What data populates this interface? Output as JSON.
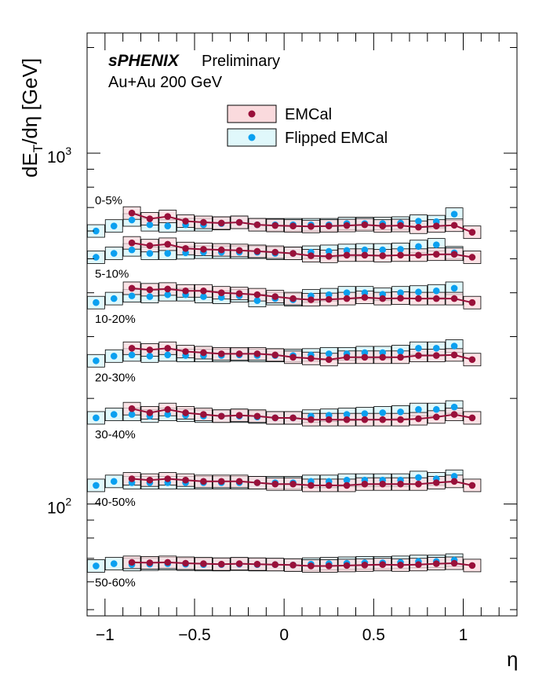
{
  "header": {
    "experiment": "sPHENIX",
    "status": "Preliminary",
    "collision": "Au+Au 200 GeV"
  },
  "chart_data": {
    "type": "scatter",
    "xlabel": "η",
    "ylabel": "dE_T/dη [GeV]",
    "y_scale": "log",
    "xlim": [
      -1.1,
      1.3
    ],
    "ylim": [
      48,
      2200
    ],
    "x_ticks": [
      {
        "value": -1,
        "label": "−1"
      },
      {
        "value": -0.5,
        "label": "−0.5"
      },
      {
        "value": 0,
        "label": "0"
      },
      {
        "value": 0.5,
        "label": "0.5"
      },
      {
        "value": 1,
        "label": "1"
      }
    ],
    "y_ticks": [
      {
        "value": 1000,
        "label": "10",
        "exp": "3"
      },
      {
        "value": 100,
        "label": "10",
        "exp": "2"
      }
    ],
    "legend": {
      "placement": "top-center",
      "entries": [
        {
          "label": "EMCal",
          "marker_color": "#99103a",
          "box_fill": "#fadadd"
        },
        {
          "label": "Flipped EMCal",
          "marker_color": "#0aa0f0",
          "box_fill": "#e0f8fb"
        }
      ]
    },
    "series_styles": {
      "emcal": {
        "marker": "#99103a",
        "box_fill": "#fadadd"
      },
      "flipped": {
        "marker": "#0aa0f0",
        "box_fill": "#e0f8fb"
      }
    },
    "groups": [
      {
        "label": "0-5%",
        "emcal": {
          "x": [
            -0.85,
            -0.75,
            -0.65,
            -0.55,
            -0.45,
            -0.35,
            -0.25,
            -0.15,
            -0.05,
            0.05,
            0.15,
            0.25,
            0.35,
            0.45,
            0.55,
            0.65,
            0.75,
            0.85,
            0.95,
            1.05
          ],
          "y": [
            675,
            650,
            660,
            640,
            635,
            632,
            635,
            625,
            622,
            620,
            618,
            620,
            622,
            625,
            620,
            622,
            615,
            620,
            623,
            595
          ]
        },
        "flipped": {
          "x": [
            -1.05,
            -0.95,
            -0.85,
            -0.75,
            -0.65,
            -0.55,
            -0.45,
            -0.35,
            -0.25,
            -0.15,
            -0.05,
            0.05,
            0.15,
            0.25,
            0.35,
            0.45,
            0.55,
            0.65,
            0.75,
            0.85,
            0.95
          ],
          "y": [
            600,
            620,
            645,
            625,
            620,
            625,
            625,
            630,
            635,
            625,
            625,
            625,
            625,
            625,
            630,
            630,
            630,
            632,
            640,
            638,
            670
          ]
        }
      },
      {
        "label": "5-10%",
        "emcal": {
          "x": [
            -0.85,
            -0.75,
            -0.65,
            -0.55,
            -0.45,
            -0.35,
            -0.25,
            -0.15,
            -0.05,
            0.05,
            0.15,
            0.25,
            0.35,
            0.45,
            0.55,
            0.65,
            0.75,
            0.85,
            0.95,
            1.05
          ],
          "y": [
            555,
            545,
            550,
            535,
            532,
            530,
            528,
            525,
            522,
            518,
            510,
            508,
            512,
            512,
            510,
            512,
            512,
            515,
            515,
            505
          ]
        },
        "flipped": {
          "x": [
            -1.05,
            -0.95,
            -0.85,
            -0.75,
            -0.65,
            -0.55,
            -0.45,
            -0.35,
            -0.25,
            -0.15,
            -0.05,
            0.05,
            0.15,
            0.25,
            0.35,
            0.45,
            0.55,
            0.65,
            0.75,
            0.85,
            0.95
          ],
          "y": [
            505,
            518,
            530,
            518,
            518,
            520,
            522,
            522,
            522,
            522,
            518,
            518,
            522,
            525,
            528,
            530,
            530,
            532,
            542,
            548,
            520
          ]
        }
      },
      {
        "label": "10-20%",
        "emcal": {
          "x": [
            -0.85,
            -0.75,
            -0.65,
            -0.55,
            -0.45,
            -0.35,
            -0.25,
            -0.15,
            -0.05,
            0.05,
            0.15,
            0.25,
            0.35,
            0.45,
            0.55,
            0.65,
            0.75,
            0.85,
            0.95,
            1.05
          ],
          "y": [
            412,
            408,
            410,
            405,
            405,
            400,
            398,
            395,
            390,
            385,
            382,
            383,
            385,
            388,
            385,
            386,
            385,
            385,
            385,
            375
          ]
        },
        "flipped": {
          "x": [
            -1.05,
            -0.95,
            -0.85,
            -0.75,
            -0.65,
            -0.55,
            -0.45,
            -0.35,
            -0.25,
            -0.15,
            -0.05,
            0.05,
            0.15,
            0.25,
            0.35,
            0.45,
            0.55,
            0.65,
            0.75,
            0.85,
            0.95
          ],
          "y": [
            375,
            385,
            392,
            390,
            395,
            395,
            390,
            388,
            392,
            380,
            385,
            382,
            392,
            395,
            400,
            400,
            396,
            400,
            402,
            405,
            412
          ]
        }
      },
      {
        "label": "20-30%",
        "emcal": {
          "x": [
            -0.85,
            -0.75,
            -0.65,
            -0.55,
            -0.45,
            -0.35,
            -0.25,
            -0.15,
            -0.05,
            0.05,
            0.15,
            0.25,
            0.35,
            0.45,
            0.55,
            0.65,
            0.75,
            0.85,
            0.95,
            1.05
          ],
          "y": [
            278,
            275,
            278,
            272,
            270,
            268,
            268,
            268,
            266,
            262,
            260,
            258,
            262,
            262,
            262,
            262,
            265,
            265,
            266,
            258
          ]
        },
        "flipped": {
          "x": [
            -1.05,
            -0.95,
            -0.85,
            -0.75,
            -0.65,
            -0.55,
            -0.45,
            -0.35,
            -0.25,
            -0.15,
            -0.05,
            0.05,
            0.15,
            0.25,
            0.35,
            0.45,
            0.55,
            0.65,
            0.75,
            0.85,
            0.95
          ],
          "y": [
            256,
            264,
            266,
            264,
            266,
            265,
            265,
            265,
            266,
            265,
            265,
            265,
            266,
            268,
            268,
            270,
            270,
            272,
            278,
            278,
            282
          ]
        }
      },
      {
        "label": "30-40%",
        "emcal": {
          "x": [
            -0.85,
            -0.75,
            -0.65,
            -0.55,
            -0.45,
            -0.35,
            -0.25,
            -0.15,
            -0.05,
            0.05,
            0.15,
            0.25,
            0.35,
            0.45,
            0.55,
            0.65,
            0.75,
            0.85,
            0.95,
            1.05
          ],
          "y": [
            187,
            182,
            186,
            182,
            180,
            178,
            179,
            178,
            176,
            176,
            174,
            174,
            174,
            174,
            174,
            174,
            175,
            177,
            180,
            176
          ]
        },
        "flipped": {
          "x": [
            -1.05,
            -0.95,
            -0.85,
            -0.75,
            -0.65,
            -0.55,
            -0.45,
            -0.35,
            -0.25,
            -0.15,
            -0.05,
            0.05,
            0.15,
            0.25,
            0.35,
            0.45,
            0.55,
            0.65,
            0.75,
            0.85,
            0.95
          ],
          "y": [
            176,
            180,
            180,
            178,
            180,
            179,
            178,
            178,
            178,
            177,
            176,
            176,
            178,
            179,
            180,
            181,
            182,
            183,
            186,
            186,
            189
          ]
        }
      },
      {
        "label": "40-50%",
        "emcal": {
          "x": [
            -0.85,
            -0.75,
            -0.65,
            -0.55,
            -0.45,
            -0.35,
            -0.25,
            -0.15,
            -0.05,
            0.05,
            0.15,
            0.25,
            0.35,
            0.45,
            0.55,
            0.65,
            0.75,
            0.85,
            0.95,
            1.05
          ],
          "y": [
            118,
            117,
            118,
            117,
            116,
            116,
            116,
            115,
            114,
            114,
            113,
            113,
            113,
            114,
            114,
            114,
            114,
            115,
            116,
            113
          ]
        },
        "flipped": {
          "x": [
            -1.05,
            -0.95,
            -0.85,
            -0.75,
            -0.65,
            -0.55,
            -0.45,
            -0.35,
            -0.25,
            -0.15,
            -0.05,
            0.05,
            0.15,
            0.25,
            0.35,
            0.45,
            0.55,
            0.65,
            0.75,
            0.85,
            0.95
          ],
          "y": [
            113,
            116,
            115,
            115,
            115,
            115,
            115,
            115,
            115,
            115,
            115,
            115,
            116,
            116,
            117,
            117,
            117,
            117,
            119,
            118,
            120
          ]
        }
      },
      {
        "label": "50-60%",
        "emcal": {
          "x": [
            -0.85,
            -0.75,
            -0.65,
            -0.55,
            -0.45,
            -0.35,
            -0.25,
            -0.15,
            -0.05,
            0.05,
            0.15,
            0.25,
            0.35,
            0.45,
            0.55,
            0.65,
            0.75,
            0.85,
            0.95,
            1.05
          ],
          "y": [
            68.2,
            68.0,
            68.2,
            67.8,
            67.6,
            67.4,
            67.6,
            67.4,
            67.2,
            67.0,
            66.6,
            66.6,
            66.8,
            67.0,
            67.2,
            67.0,
            67.2,
            67.6,
            67.8,
            66.8
          ]
        },
        "flipped": {
          "x": [
            -1.05,
            -0.95,
            -0.85,
            -0.75,
            -0.65,
            -0.55,
            -0.45,
            -0.35,
            -0.25,
            -0.15,
            -0.05,
            0.05,
            0.15,
            0.25,
            0.35,
            0.45,
            0.55,
            0.65,
            0.75,
            0.85,
            0.95
          ],
          "y": [
            66.6,
            67.6,
            67.2,
            67.4,
            67.6,
            67.4,
            67.2,
            67.2,
            67.4,
            67.2,
            67.2,
            67.0,
            67.4,
            67.6,
            67.8,
            68.0,
            68.0,
            68.2,
            68.6,
            68.6,
            69.2
          ]
        }
      }
    ]
  }
}
